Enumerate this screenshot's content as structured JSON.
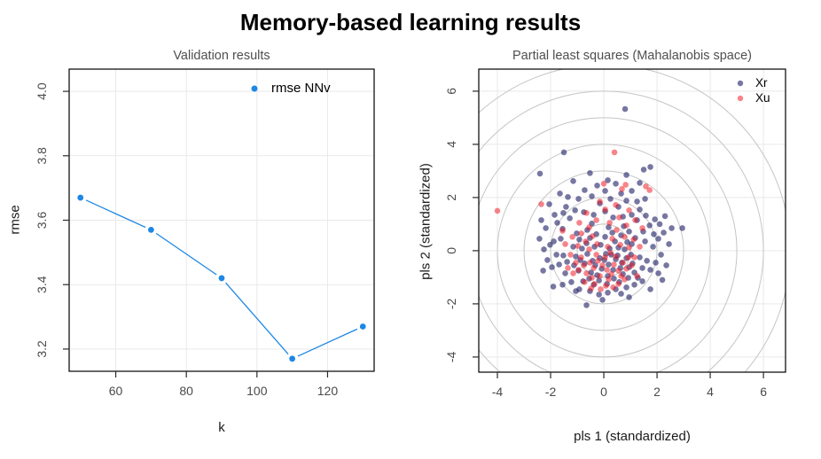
{
  "main_title": "Memory-based learning results",
  "colors": {
    "line_series": "#1E87E5",
    "xr_points": "rgba(35,35,105,0.62)",
    "xu_points": "rgba(240,20,30,0.52)",
    "grid": "#e9e9e9",
    "ellipse": "#c5c5c5",
    "box_border": "#000000",
    "tick": "#2a2a2a",
    "tick_label": "#4a4a4a",
    "panel_title": "#4f4f4f"
  },
  "chart_data": [
    {
      "type": "line",
      "title": "Validation results",
      "xlabel": "k",
      "ylabel": "rmse",
      "legend": {
        "label": "rmse NNv",
        "position": "top-center-inside"
      },
      "x": [
        50,
        70,
        90,
        110,
        130
      ],
      "y": [
        3.67,
        3.57,
        3.42,
        3.17,
        3.27
      ],
      "xlim": [
        46.8,
        133.2
      ],
      "ylim": [
        3.131,
        4.069
      ],
      "xticks": [
        60,
        80,
        100,
        120
      ],
      "xtick_labels": [
        "60",
        "80",
        "100",
        "120"
      ],
      "yticks": [
        3.2,
        3.4,
        3.6,
        3.8,
        4.0
      ],
      "ytick_labels": [
        "3.2",
        "3.4",
        "3.6",
        "3.8",
        "4.0"
      ],
      "grid": true,
      "marker": "point-with-line-gaps"
    },
    {
      "type": "scatter",
      "title": "Partial least squares (Mahalanobis space)",
      "xlabel": "pls 1 (standardized)",
      "ylabel": "pls 2 (standardized)",
      "legend": {
        "labels": [
          "Xr",
          "Xu"
        ],
        "position": "top-right-inside"
      },
      "xlim": [
        -4.7,
        6.83
      ],
      "ylim": [
        -4.57,
        6.83
      ],
      "xticks": [
        -4,
        -2,
        0,
        2,
        4,
        6
      ],
      "xtick_labels": [
        "-4",
        "-2",
        "0",
        "2",
        "4",
        "6"
      ],
      "yticks": [
        -4,
        -2,
        0,
        2,
        4,
        6
      ],
      "ytick_labels": [
        "-4",
        "-2",
        "0",
        "2",
        "4",
        "6"
      ],
      "grid": true,
      "mahalanobis_circle_radii": [
        1,
        2,
        3,
        4,
        5,
        6,
        7
      ],
      "series": [
        {
          "name": "Xr",
          "points": [
            [
              0.02,
              -0.35
            ],
            [
              0.18,
              -0.52
            ],
            [
              -0.15,
              -0.28
            ],
            [
              0.35,
              -0.72
            ],
            [
              -0.32,
              -0.55
            ],
            [
              0.52,
              -0.18
            ],
            [
              -0.48,
              -0.82
            ],
            [
              0.68,
              -0.45
            ],
            [
              -0.62,
              -0.12
            ],
            [
              0.15,
              -0.95
            ],
            [
              -0.08,
              -0.68
            ],
            [
              0.45,
              -0.32
            ],
            [
              -0.42,
              -0.38
            ],
            [
              0.28,
              -0.15
            ],
            [
              -0.25,
              -0.92
            ],
            [
              0.62,
              -0.65
            ],
            [
              -0.72,
              -0.48
            ],
            [
              0.08,
              -0.12
            ],
            [
              0.85,
              -0.28
            ],
            [
              -0.88,
              -0.35
            ],
            [
              0.38,
              -1.05
            ],
            [
              -0.18,
              -1.12
            ],
            [
              0.72,
              -0.88
            ],
            [
              -0.55,
              -1.05
            ],
            [
              0.95,
              -0.62
            ],
            [
              -0.95,
              -0.75
            ],
            [
              0.22,
              0.08
            ],
            [
              -0.35,
              0.15
            ],
            [
              0.55,
              0.12
            ],
            [
              -0.65,
              0.28
            ],
            [
              0.78,
              0.05
            ],
            [
              -0.12,
              0.22
            ],
            [
              0.05,
              0.52
            ],
            [
              0.42,
              0.35
            ],
            [
              -0.52,
              0.48
            ],
            [
              0.88,
              0.32
            ],
            [
              -0.82,
              0.08
            ],
            [
              1.02,
              -0.15
            ],
            [
              -1.05,
              -0.22
            ],
            [
              0.12,
              -1.25
            ],
            [
              -0.38,
              -1.28
            ],
            [
              0.58,
              -1.18
            ],
            [
              1.08,
              -0.48
            ],
            [
              -1.12,
              -0.55
            ],
            [
              0.92,
              -1.02
            ],
            [
              -0.78,
              -1.15
            ],
            [
              1.15,
              -0.82
            ],
            [
              0.32,
              0.68
            ],
            [
              -0.28,
              0.62
            ],
            [
              0.65,
              0.58
            ],
            [
              -0.92,
              0.42
            ],
            [
              1.05,
              0.25
            ],
            [
              -1.15,
              0.15
            ],
            [
              0.18,
              0.88
            ],
            [
              -0.62,
              0.78
            ],
            [
              0.95,
              0.72
            ],
            [
              -1.02,
              0.65
            ],
            [
              1.18,
              0.48
            ],
            [
              -0.45,
              1.02
            ],
            [
              0.75,
              0.92
            ],
            [
              1.35,
              -0.25
            ],
            [
              -1.38,
              -0.42
            ],
            [
              1.45,
              -0.65
            ],
            [
              -1.52,
              -0.18
            ],
            [
              1.28,
              -1.02
            ],
            [
              -1.45,
              -0.85
            ],
            [
              1.62,
              -0.38
            ],
            [
              -1.68,
              -0.52
            ],
            [
              1.55,
              0.35
            ],
            [
              -1.62,
              0.45
            ],
            [
              1.75,
              -0.72
            ],
            [
              -1.78,
              -0.15
            ],
            [
              1.48,
              0.72
            ],
            [
              -1.55,
              0.82
            ],
            [
              1.85,
              0.15
            ],
            [
              -1.88,
              0.35
            ],
            [
              1.95,
              -0.45
            ],
            [
              -1.95,
              -0.62
            ],
            [
              2.05,
              0.45
            ],
            [
              -2.02,
              0.22
            ],
            [
              1.72,
              0.95
            ],
            [
              -1.75,
              1.05
            ],
            [
              2.15,
              -0.15
            ],
            [
              -2.12,
              -0.35
            ],
            [
              1.25,
              1.15
            ],
            [
              -1.28,
              1.22
            ],
            [
              1.58,
              1.32
            ],
            [
              -1.52,
              1.42
            ],
            [
              2.25,
              0.68
            ],
            [
              -2.18,
              0.85
            ],
            [
              1.92,
              1.18
            ],
            [
              -1.85,
              1.35
            ],
            [
              2.1,
              1.0
            ],
            [
              0.45,
              -1.45
            ],
            [
              -0.52,
              -1.52
            ],
            [
              0.85,
              -1.38
            ],
            [
              -0.92,
              -1.45
            ],
            [
              1.15,
              -1.28
            ],
            [
              -1.22,
              -1.18
            ],
            [
              0.15,
              -1.58
            ],
            [
              -0.18,
              -1.65
            ],
            [
              0.65,
              -1.62
            ],
            [
              1.45,
              -1.15
            ],
            [
              -1.05,
              -1.52
            ],
            [
              0.35,
              1.25
            ],
            [
              -0.38,
              1.35
            ],
            [
              0.72,
              1.28
            ],
            [
              -0.75,
              1.45
            ],
            [
              1.05,
              1.35
            ],
            [
              -1.08,
              1.52
            ],
            [
              0.05,
              1.48
            ],
            [
              1.35,
              1.55
            ],
            [
              -1.42,
              1.65
            ],
            [
              0.55,
              1.65
            ],
            [
              -0.15,
              1.78
            ],
            [
              0.25,
              1.95
            ],
            [
              -0.45,
              2.05
            ],
            [
              0.85,
              1.88
            ],
            [
              -0.95,
              1.95
            ],
            [
              1.25,
              1.85
            ],
            [
              -1.35,
              2.02
            ],
            [
              0.05,
              2.25
            ],
            [
              0.65,
              2.15
            ],
            [
              -0.72,
              2.28
            ],
            [
              1.55,
              1.95
            ],
            [
              -1.65,
              2.15
            ],
            [
              1.05,
              2.25
            ],
            [
              -0.25,
              2.45
            ],
            [
              0.45,
              2.52
            ],
            [
              -2.35,
              1.15
            ],
            [
              2.35,
              -0.55
            ],
            [
              -2.28,
              -0.75
            ],
            [
              2.45,
              0.25
            ],
            [
              -2.42,
              0.45
            ],
            [
              2.3,
              1.3
            ],
            [
              -2.05,
              1.75
            ],
            [
              1.35,
              2.55
            ],
            [
              -1.15,
              2.62
            ],
            [
              0.85,
              2.85
            ],
            [
              -0.52,
              2.92
            ],
            [
              0.15,
              2.65
            ],
            [
              2.55,
              0.85
            ],
            [
              2.95,
              0.85
            ],
            [
              -2.4,
              2.9
            ],
            [
              -1.5,
              3.7
            ],
            [
              1.5,
              3.05
            ],
            [
              1.75,
              3.15
            ],
            [
              0.8,
              5.33
            ],
            [
              -0.65,
              -2.05
            ],
            [
              2.2,
              -1.1
            ],
            [
              -1.9,
              -1.35
            ],
            [
              1.75,
              -1.45
            ],
            [
              -0.05,
              -1.85
            ],
            [
              0.95,
              -1.75
            ],
            [
              -1.55,
              -1.28
            ],
            [
              2.05,
              -0.85
            ],
            [
              -2.25,
              0.05
            ],
            [
              1.88,
              0.62
            ]
          ]
        },
        {
          "name": "Xu",
          "points": [
            [
              -0.05,
              -0.55
            ],
            [
              0.12,
              -0.72
            ],
            [
              -0.22,
              -0.38
            ],
            [
              0.28,
              -0.88
            ],
            [
              -0.38,
              -0.65
            ],
            [
              0.05,
              -0.25
            ],
            [
              -0.52,
              -0.45
            ],
            [
              0.38,
              -0.52
            ],
            [
              -0.15,
              -0.95
            ],
            [
              0.18,
              -1.08
            ],
            [
              -0.45,
              -1.02
            ],
            [
              0.55,
              -0.75
            ],
            [
              -0.65,
              -0.85
            ],
            [
              0.45,
              -0.22
            ],
            [
              -0.28,
              -0.15
            ],
            [
              0.65,
              -0.95
            ],
            [
              -0.75,
              -0.55
            ],
            [
              0.08,
              -1.32
            ],
            [
              -0.35,
              -1.25
            ],
            [
              0.72,
              -0.45
            ],
            [
              -0.85,
              -0.25
            ],
            [
              0.25,
              -0.08
            ],
            [
              -0.55,
              0.05
            ],
            [
              0.85,
              -0.68
            ],
            [
              -0.95,
              -0.72
            ],
            [
              0.35,
              -1.38
            ],
            [
              -0.12,
              -1.45
            ],
            [
              0.92,
              -0.25
            ],
            [
              -1.05,
              -0.45
            ],
            [
              0.55,
              -1.25
            ],
            [
              -0.72,
              -1.18
            ],
            [
              1.05,
              -0.55
            ],
            [
              -1.15,
              -0.85
            ],
            [
              0.78,
              -1.08
            ],
            [
              -0.48,
              -1.42
            ],
            [
              1.15,
              -0.25
            ],
            [
              -1.25,
              -0.15
            ],
            [
              0.15,
              0.15
            ],
            [
              -0.25,
              0.25
            ],
            [
              0.62,
              0.22
            ],
            [
              -0.68,
              0.35
            ],
            [
              0.95,
              0.12
            ],
            [
              -0.98,
              0.18
            ],
            [
              0.32,
              0.45
            ],
            [
              -0.42,
              0.55
            ],
            [
              0.78,
              0.52
            ],
            [
              -0.85,
              0.65
            ],
            [
              1.12,
              0.42
            ],
            [
              -1.18,
              0.52
            ],
            [
              0.48,
              0.78
            ],
            [
              -0.55,
              0.88
            ],
            [
              1.25,
              -0.95
            ],
            [
              -1.35,
              -0.65
            ],
            [
              0.22,
              1.05
            ],
            [
              -0.28,
              1.15
            ],
            [
              0.85,
              0.95
            ],
            [
              -0.92,
              1.05
            ],
            [
              1.35,
              0.15
            ],
            [
              -1.45,
              0.25
            ],
            [
              0.58,
              1.25
            ],
            [
              -0.65,
              1.42
            ],
            [
              1.18,
              1.15
            ],
            [
              0.05,
              1.55
            ],
            [
              -1.55,
              0.75
            ],
            [
              1.45,
              0.85
            ],
            [
              0.95,
              1.52
            ],
            [
              -0.15,
              1.85
            ],
            [
              0.45,
              1.72
            ],
            [
              0.0,
              2.52
            ],
            [
              0.68,
              2.32
            ],
            [
              0.82,
              2.48
            ],
            [
              1.58,
              2.42
            ],
            [
              1.72,
              2.28
            ],
            [
              0.4,
              3.7
            ],
            [
              -4.0,
              1.5
            ],
            [
              -2.35,
              1.75
            ]
          ]
        }
      ]
    }
  ]
}
